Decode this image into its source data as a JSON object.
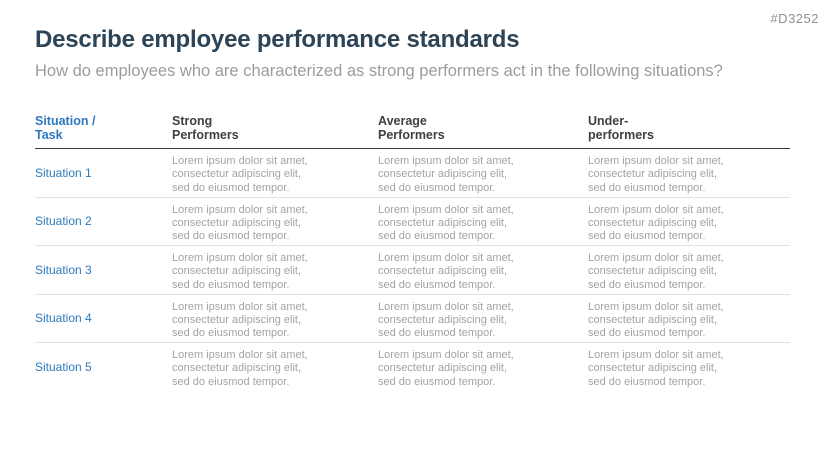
{
  "slide": {
    "id_tag": "#D3252",
    "title": "Describe employee performance standards",
    "subtitle": "How do employees who are characterized as strong performers act in the following situations?"
  },
  "table": {
    "columns": [
      {
        "label": "Situation /\nTask"
      },
      {
        "label": "Strong\nPerformers"
      },
      {
        "label": "Average\nPerformers"
      },
      {
        "label": "Under-\nperformers"
      }
    ],
    "rows": [
      {
        "situation": "Situation 1",
        "strong": "Lorem ipsum dolor sit amet,\nconsectetur adipiscing elit,\nsed do eiusmod tempor.",
        "average": "Lorem ipsum dolor sit amet,\nconsectetur adipiscing elit,\nsed do eiusmod tempor.",
        "under": "Lorem ipsum dolor sit amet,\nconsectetur adipiscing elit,\nsed do eiusmod tempor."
      },
      {
        "situation": "Situation 2",
        "strong": "Lorem ipsum dolor sit amet,\nconsectetur adipiscing elit,\nsed do eiusmod tempor.",
        "average": "Lorem ipsum dolor sit amet,\nconsectetur adipiscing elit,\nsed do eiusmod tempor.",
        "under": "Lorem ipsum dolor sit amet,\nconsectetur adipiscing elit,\nsed do eiusmod tempor."
      },
      {
        "situation": "Situation 3",
        "strong": "Lorem ipsum dolor sit amet,\nconsectetur adipiscing elit,\nsed do eiusmod tempor.",
        "average": "Lorem ipsum dolor sit amet,\nconsectetur adipiscing elit,\nsed do eiusmod tempor.",
        "under": "Lorem ipsum dolor sit amet,\nconsectetur adipiscing elit,\nsed do eiusmod tempor."
      },
      {
        "situation": "Situation 4",
        "strong": "Lorem ipsum dolor sit amet,\nconsectetur adipiscing elit,\nsed do eiusmod tempor.",
        "average": "Lorem ipsum dolor sit amet,\nconsectetur adipiscing elit,\nsed do eiusmod tempor.",
        "under": "Lorem ipsum dolor sit amet,\nconsectetur adipiscing elit,\nsed do eiusmod tempor."
      },
      {
        "situation": "Situation 5",
        "strong": "Lorem ipsum dolor sit amet,\nconsectetur adipiscing elit,\nsed do eiusmod tempor.",
        "average": "Lorem ipsum dolor sit amet,\nconsectetur adipiscing elit,\nsed do eiusmod tempor.",
        "under": "Lorem ipsum dolor sit amet,\nconsectetur adipiscing elit,\nsed do eiusmod tempor."
      }
    ]
  },
  "colors": {
    "accent_blue": "#2e79be",
    "title_navy": "#2d4356",
    "subtitle_gray": "#9c9c9c",
    "header_text": "#404040",
    "cell_text_gray": "#a3a3a3",
    "header_rule_dark": "#3d3d3d",
    "row_rule_light": "#e1e1e1",
    "slide_id_gray": "#8f8f8f"
  }
}
